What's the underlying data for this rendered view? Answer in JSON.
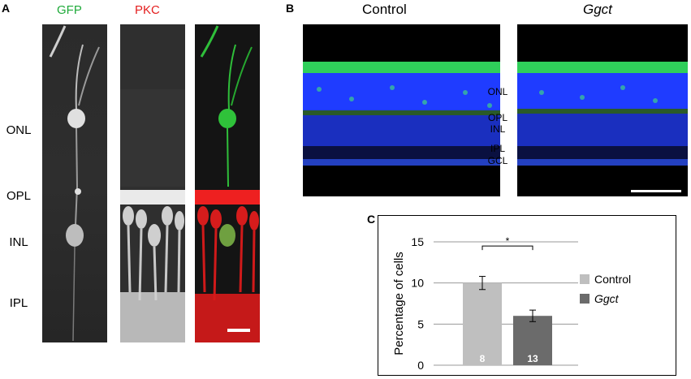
{
  "panel_a": {
    "letter": "A",
    "channels": [
      {
        "label": "GFP",
        "color": "#1faa3a"
      },
      {
        "label": "PKC",
        "color": "#e41e1e"
      }
    ],
    "layers": [
      "ONL",
      "OPL",
      "INL",
      "IPL"
    ]
  },
  "panel_b": {
    "letter": "B",
    "conditions": [
      {
        "label": "Control",
        "italic": false
      },
      {
        "label": "Ggct",
        "italic": true
      }
    ],
    "layers": [
      "ONL",
      "OPL",
      "INL",
      "IPL",
      "GCL"
    ]
  },
  "panel_c": {
    "letter": "C",
    "significance": "*",
    "chart_data": {
      "type": "bar",
      "title": "",
      "xlabel": "",
      "ylabel": "Percentage of cells",
      "ylim": [
        0,
        15
      ],
      "yticks": [
        0,
        5,
        10,
        15
      ],
      "categories": [
        "Control",
        "Ggct"
      ],
      "values": [
        10.0,
        6.0
      ],
      "errors": [
        0.8,
        0.7
      ],
      "n_labels": [
        "8",
        "13"
      ],
      "colors": [
        "#bfbfbf",
        "#6b6b6b"
      ],
      "legend": [
        {
          "label": "Control",
          "color": "#bfbfbf",
          "italic": false
        },
        {
          "label": "Ggct",
          "color": "#6b6b6b",
          "italic": true
        }
      ],
      "legend_position": "right",
      "grid": true
    }
  }
}
